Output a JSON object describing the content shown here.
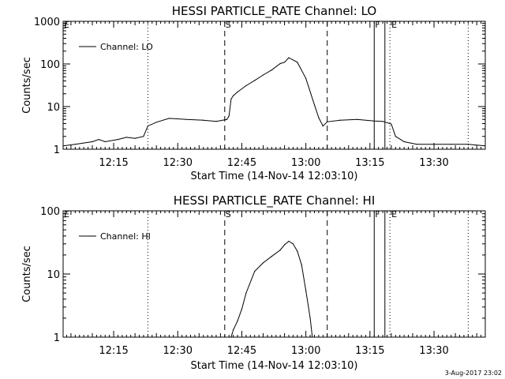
{
  "chart_data": [
    {
      "type": "line",
      "title": "HESSI PARTICLE_RATE Channel: LO",
      "xlabel": "Start Time (14-Nov-14 12:03:10)",
      "ylabel": "Counts/sec",
      "yscale": "log",
      "ylim": [
        1,
        1000
      ],
      "xlim": [
        "12:03:10",
        "13:42:00"
      ],
      "x_ticks": [
        "12:15",
        "12:30",
        "12:45",
        "13:00",
        "13:15",
        "13:30"
      ],
      "y_ticks": [
        "1",
        "10",
        "100",
        "1000"
      ],
      "legend": "top-left",
      "series": [
        {
          "name": "Channel: LO",
          "x": [
            "12:03:10",
            "12:06:00",
            "12:10:00",
            "12:11:30",
            "12:13:00",
            "12:16:00",
            "12:18:00",
            "12:20:00",
            "12:22:00",
            "12:23:00",
            "12:25:00",
            "12:28:00",
            "12:32:00",
            "12:36:00",
            "12:39:00",
            "12:41:30",
            "12:42:00",
            "12:42:30",
            "12:43:00",
            "12:44:00",
            "12:46:00",
            "12:48:00",
            "12:50:00",
            "12:52:00",
            "12:54:00",
            "12:55:00",
            "12:56:00",
            "12:58:00",
            "13:00:00",
            "13:02:00",
            "13:03:00",
            "13:04:00",
            "13:05:00",
            "13:08:00",
            "13:12:00",
            "13:16:00",
            "13:18:00",
            "13:20:00",
            "13:21:00",
            "13:23:00",
            "13:26:00",
            "13:30:00",
            "13:34:00",
            "13:38:00",
            "13:42:00"
          ],
          "y": [
            1.2,
            1.3,
            1.5,
            1.7,
            1.5,
            1.7,
            1.9,
            1.8,
            2.0,
            3.5,
            4.3,
            5.3,
            5.0,
            4.8,
            4.5,
            5.0,
            6.0,
            15,
            18,
            22,
            31,
            41,
            55,
            72,
            102,
            110,
            140,
            110,
            46,
            11,
            5.5,
            3.5,
            4.4,
            4.8,
            5.0,
            4.6,
            4.5,
            3.9,
            2.0,
            1.5,
            1.3,
            1.3,
            1.3,
            1.3,
            1.2
          ]
        }
      ],
      "markers": {
        "E_start": "12:03:10",
        "dotted_1": "12:23:00",
        "S_dashed": "12:41:00",
        "dashed_end": "13:05:00",
        "F_solid_1": "13:16:00",
        "F_solid_2": "13:18:30",
        "E_dotted": "13:19:40",
        "dotted_2": "13:38:00"
      },
      "marker_labels": {
        "E": "E",
        "S": "S",
        "F": "F",
        "E2": "E"
      }
    },
    {
      "type": "line",
      "title": "HESSI PARTICLE_RATE Channel: HI",
      "xlabel": "Start Time (14-Nov-14 12:03:10)",
      "ylabel": "Counts/sec",
      "yscale": "log",
      "ylim": [
        1,
        100
      ],
      "xlim": [
        "12:03:10",
        "13:42:00"
      ],
      "x_ticks": [
        "12:15",
        "12:30",
        "12:45",
        "13:00",
        "13:15",
        "13:30"
      ],
      "y_ticks": [
        "1",
        "10",
        "100"
      ],
      "legend": "top-left",
      "series": [
        {
          "name": "Channel: HI",
          "x": [
            "12:42:30",
            "12:43:00",
            "12:44:00",
            "12:45:00",
            "12:46:00",
            "12:48:00",
            "12:50:00",
            "12:52:00",
            "12:54:00",
            "12:55:00",
            "12:56:00",
            "12:57:00",
            "12:58:00",
            "12:59:00",
            "13:00:00",
            "13:01:00",
            "13:01:30"
          ],
          "y": [
            1.0,
            1.3,
            1.8,
            2.8,
            5.0,
            11,
            15,
            19,
            24,
            29,
            33,
            30,
            23,
            14,
            5.5,
            2.0,
            1.0
          ]
        }
      ],
      "markers": {
        "E_start": "12:03:10",
        "dotted_1": "12:23:00",
        "S_dashed": "12:41:00",
        "dashed_end": "13:05:00",
        "F_solid_1": "13:16:00",
        "F_solid_2": "13:18:30",
        "E_dotted": "13:19:40",
        "dotted_2": "13:38:00"
      },
      "marker_labels": {
        "E": "E",
        "S": "S",
        "F": "F",
        "E2": "E"
      }
    }
  ],
  "footer": {
    "timestamp": "3-Aug-2017 23:02"
  }
}
